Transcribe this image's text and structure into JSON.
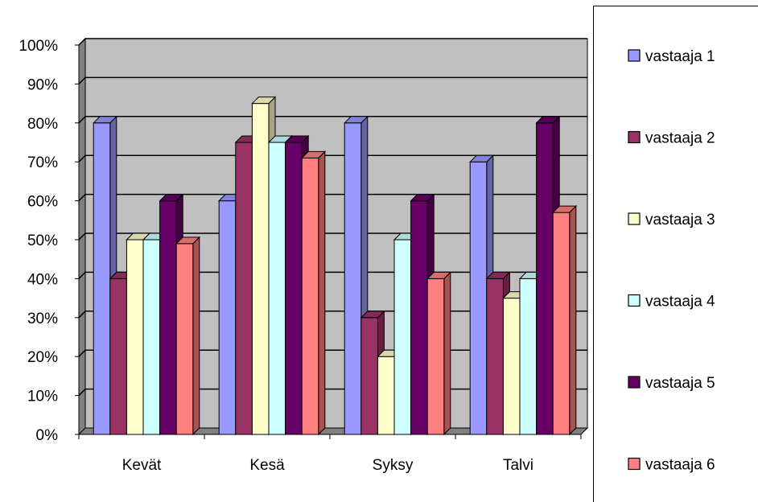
{
  "chart_data": {
    "type": "bar",
    "style": "3d-clustered-column",
    "categories": [
      "Kevät",
      "Kesä",
      "Syksy",
      "Talvi"
    ],
    "series": [
      {
        "name": "vastaaja 1",
        "color": "#9999FF",
        "values": [
          80,
          60,
          80,
          70
        ]
      },
      {
        "name": "vastaaja 2",
        "color": "#993366",
        "values": [
          40,
          75,
          30,
          40
        ]
      },
      {
        "name": "vastaaja 3",
        "color": "#FFFFCC",
        "values": [
          50,
          85,
          20,
          35
        ]
      },
      {
        "name": "vastaaja 4",
        "color": "#CCFFFF",
        "values": [
          50,
          75,
          50,
          40
        ]
      },
      {
        "name": "vastaaja 5",
        "color": "#660066",
        "values": [
          60,
          75,
          60,
          80
        ]
      },
      {
        "name": "vastaaja 6",
        "color": "#FF8080",
        "values": [
          49,
          71,
          40,
          57
        ]
      }
    ],
    "yticks": [
      "0%",
      "10%",
      "20%",
      "30%",
      "40%",
      "50%",
      "60%",
      "70%",
      "80%",
      "90%",
      "100%"
    ],
    "ylim": [
      0,
      100
    ],
    "grid": true,
    "wall_color": "#C0C0C0",
    "legend_position": "right"
  }
}
